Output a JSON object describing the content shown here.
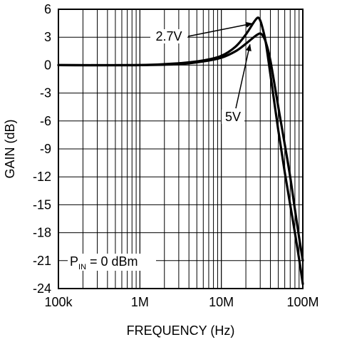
{
  "chart_data": {
    "type": "line",
    "xlabel": "FREQUENCY (Hz)",
    "ylabel": "GAIN (dB)",
    "x_scale": "log",
    "xlim": [
      100000,
      100000000
    ],
    "ylim": [
      -24,
      6
    ],
    "grid": true,
    "x_ticks": [
      {
        "value": 100000,
        "label": "100k"
      },
      {
        "value": 1000000,
        "label": "1M"
      },
      {
        "value": 10000000,
        "label": "10M"
      },
      {
        "value": 100000000,
        "label": "100M"
      }
    ],
    "y_ticks": [
      6,
      3,
      0,
      -3,
      -6,
      -9,
      -12,
      -15,
      -18,
      -21,
      -24
    ],
    "series": [
      {
        "name": "2.7V",
        "x": [
          100000,
          1000000,
          3000000,
          6000000,
          10000000,
          15000000,
          20000000,
          25000000,
          28000000,
          30000000,
          32000000,
          35000000,
          40000000,
          50000000,
          60000000,
          70000000,
          80000000,
          90000000,
          100000000
        ],
        "y": [
          0,
          0,
          0.2,
          0.5,
          1.0,
          2.0,
          3.3,
          4.6,
          5.1,
          4.8,
          4.0,
          2.5,
          -1.0,
          -7.0,
          -11.5,
          -15.0,
          -18.0,
          -20.8,
          -23.5
        ]
      },
      {
        "name": "5V",
        "x": [
          100000,
          1000000,
          3000000,
          6000000,
          10000000,
          15000000,
          20000000,
          25000000,
          28000000,
          30000000,
          32000000,
          35000000,
          40000000,
          50000000,
          60000000,
          70000000,
          80000000,
          90000000,
          100000000
        ],
        "y": [
          0,
          0,
          0.1,
          0.4,
          0.8,
          1.5,
          2.3,
          3.0,
          3.3,
          3.4,
          3.2,
          2.5,
          0.5,
          -4.5,
          -8.5,
          -12.0,
          -15.5,
          -18.5,
          -21.0
        ]
      }
    ],
    "annotations": [
      {
        "label": "2.7V",
        "points_to": "2.7V"
      },
      {
        "label": "5V",
        "points_to": "5V"
      }
    ],
    "condition": {
      "main": "P",
      "sub": "IN",
      "rest": " = 0 dBm"
    }
  }
}
